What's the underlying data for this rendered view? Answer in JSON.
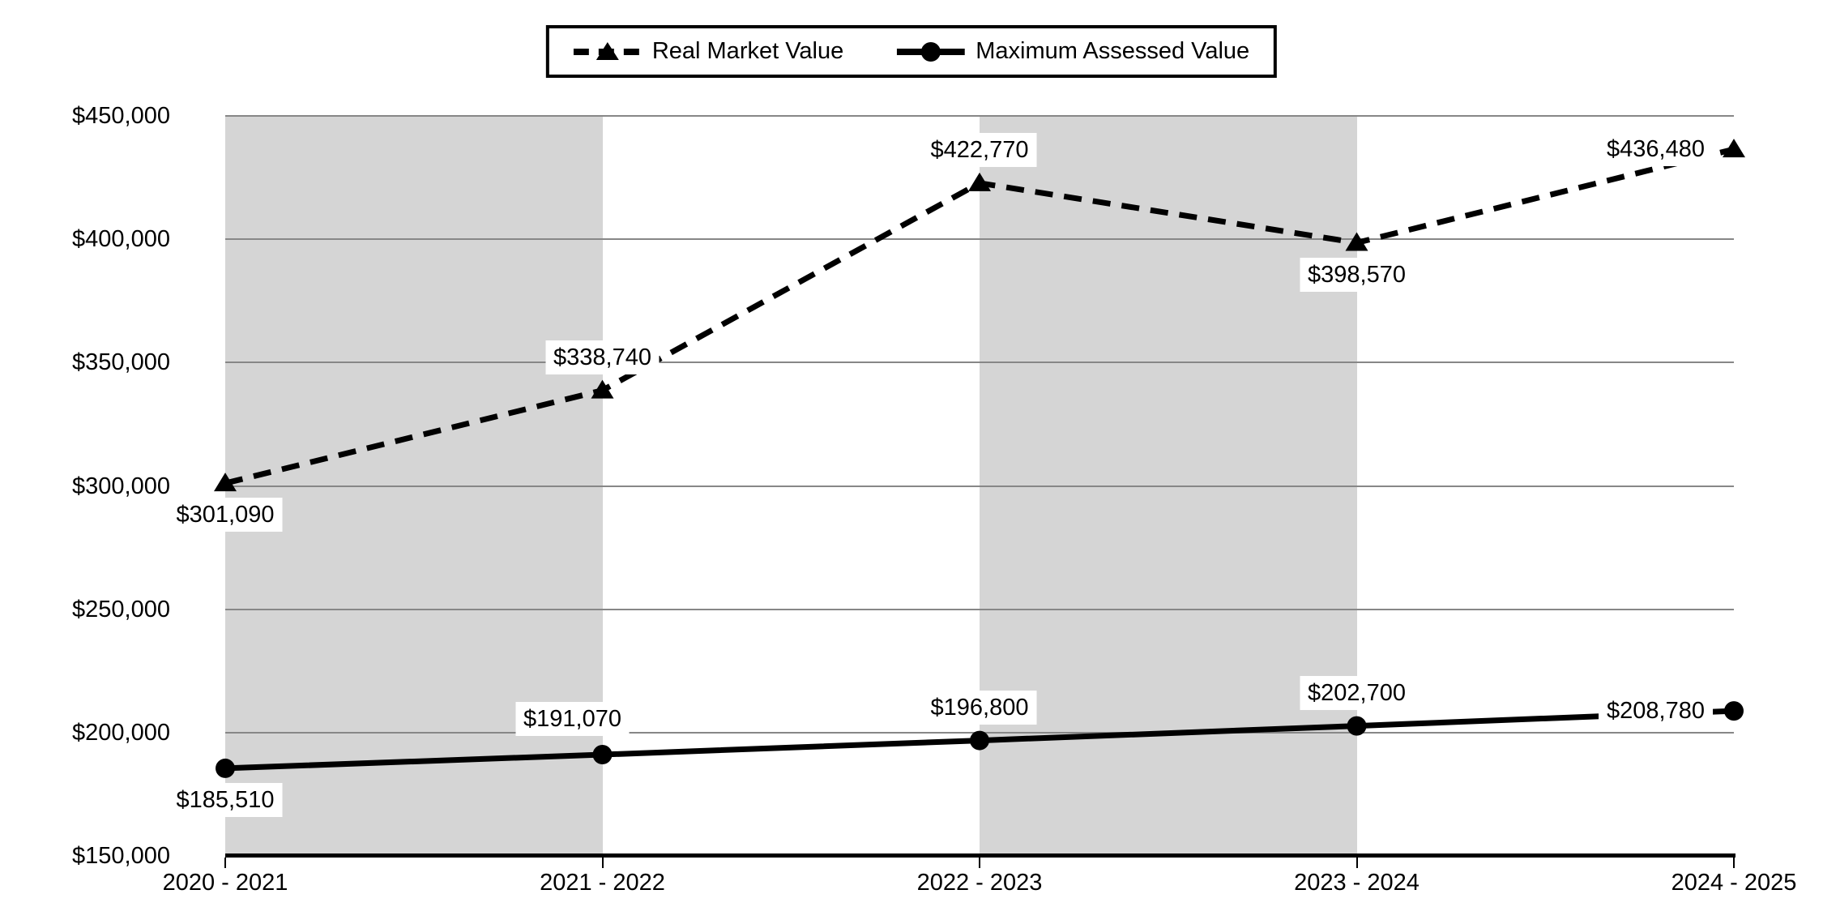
{
  "chart_data": {
    "type": "line",
    "title": "",
    "xlabel": "",
    "ylabel": "",
    "ylim": [
      150000,
      450000
    ],
    "grid": "horizontal",
    "legend_position": "top-center",
    "categories": [
      "2020 - 2021",
      "2021 - 2022",
      "2022 - 2023",
      "2023 - 2024",
      "2024 - 2025"
    ],
    "y_ticks": [
      {
        "value": 450000,
        "label": "$450,000"
      },
      {
        "value": 400000,
        "label": "$400,000"
      },
      {
        "value": 350000,
        "label": "$350,000"
      },
      {
        "value": 300000,
        "label": "$300,000"
      },
      {
        "value": 250000,
        "label": "$250,000"
      },
      {
        "value": 200000,
        "label": "$200,000"
      },
      {
        "value": 150000,
        "label": "$150,000"
      }
    ],
    "series": [
      {
        "name": "Real Market Value",
        "line_style": "dashed",
        "marker": "triangle",
        "values": [
          301090,
          338740,
          422770,
          398570,
          436480
        ],
        "labels": [
          "$301,090",
          "$338,740",
          "$422,770",
          "$398,570",
          "$436,480"
        ],
        "label_placements": [
          "below",
          "above",
          "above",
          "below",
          "left"
        ]
      },
      {
        "name": "Maximum Assessed Value",
        "line_style": "solid",
        "marker": "circle",
        "values": [
          185510,
          191070,
          196800,
          202700,
          208780
        ],
        "labels": [
          "$185,510",
          "$191,070",
          "$196,800",
          "$202,700",
          "$208,780"
        ],
        "label_placements": [
          "below",
          "above-left",
          "above",
          "above",
          "left"
        ]
      }
    ],
    "plot_bands": {
      "alternating": true,
      "first_interval_shaded": true
    },
    "colors": {
      "series_line": "#000000",
      "band_fill": "#d5d5d5",
      "gridline": "#878787",
      "axis_line": "#000000",
      "data_label_background": "#ffffff",
      "text": "#000000",
      "background": "#ffffff"
    }
  }
}
